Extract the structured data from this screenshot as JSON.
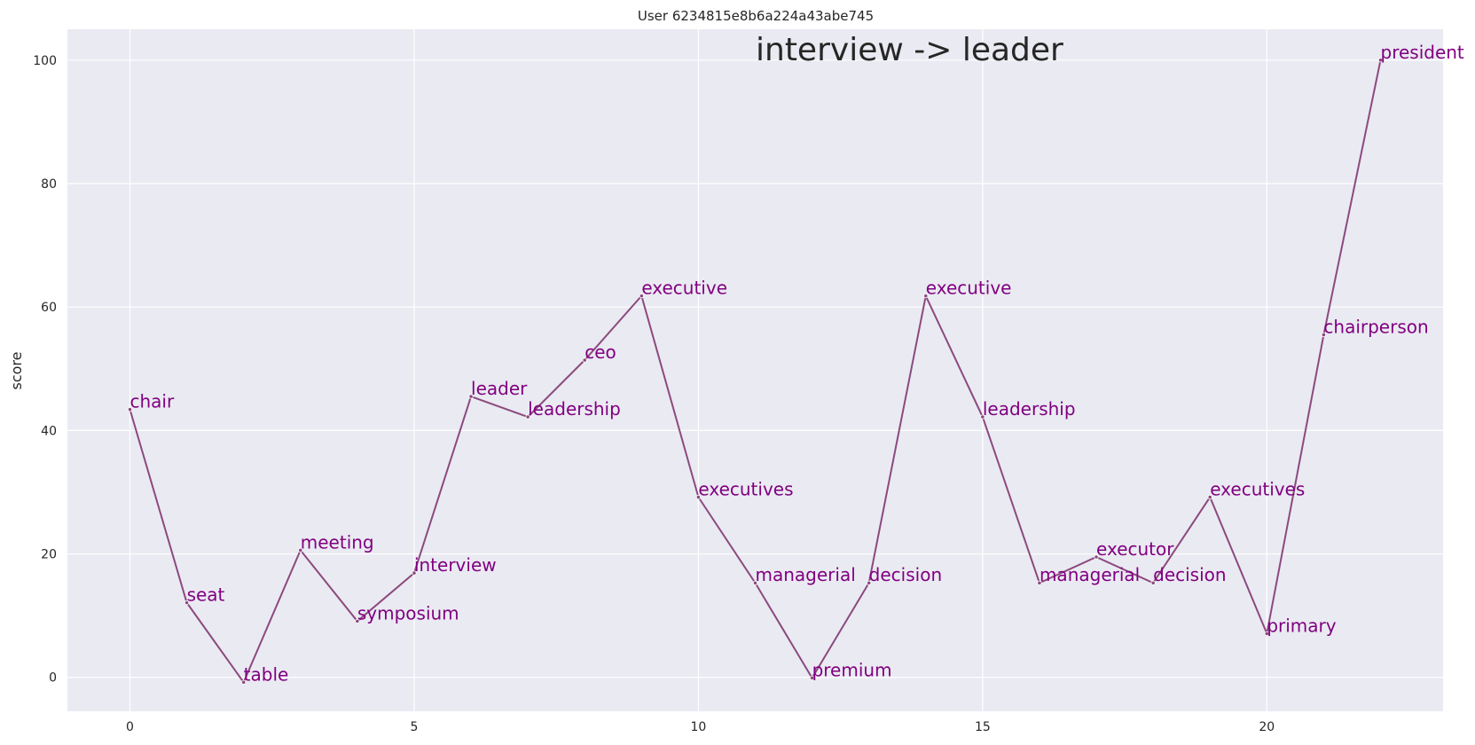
{
  "chart_data": {
    "type": "line",
    "title": "User 6234815e8b6a224a43abe745",
    "annotation": "interview -> leader",
    "xlabel": "",
    "ylabel": "score",
    "xlim": [
      -1.1,
      23.1
    ],
    "ylim": [
      -5.5,
      105
    ],
    "xticks": [
      0,
      5,
      10,
      15,
      20
    ],
    "yticks": [
      0,
      20,
      40,
      60,
      80,
      100
    ],
    "grid": true,
    "colors": {
      "background": "#eaeaf2",
      "grid": "#ffffff",
      "line": "#8b4a7e",
      "label": "#800080"
    },
    "series": [
      {
        "x": [
          0,
          1,
          2,
          3,
          4,
          5,
          6,
          7,
          8,
          9,
          10,
          11,
          12,
          13,
          14,
          15,
          16,
          17,
          18,
          19,
          20,
          21,
          22
        ],
        "values": [
          43.4,
          12.1,
          -0.8,
          20.6,
          9.1,
          16.9,
          45.5,
          42.2,
          51.4,
          61.8,
          29.2,
          15.3,
          -0.1,
          15.3,
          61.8,
          42.2,
          15.3,
          19.5,
          15.3,
          29.2,
          7.1,
          55.5,
          100
        ],
        "labels": [
          "chair",
          "seat",
          "table",
          "meeting",
          "symposium",
          "interview",
          "leader",
          "leadership",
          "ceo",
          "executive",
          "executives",
          "managerial",
          "premium",
          "decision",
          "executive",
          "leadership",
          "managerial",
          "executor",
          "decision",
          "executives",
          "primary",
          "chairperson",
          "president"
        ]
      }
    ]
  }
}
